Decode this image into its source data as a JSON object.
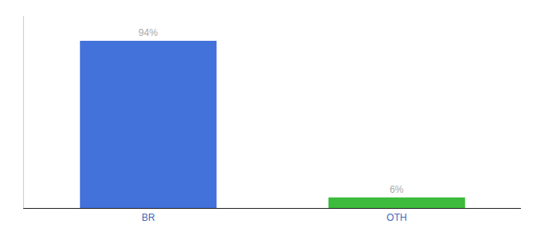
{
  "chart_data": {
    "type": "bar",
    "categories": [
      "BR",
      "OTH"
    ],
    "values": [
      94,
      6
    ],
    "value_labels": [
      "94%",
      "6%"
    ],
    "data_labels": true,
    "colors": [
      "#4472db",
      "#3dbb3d"
    ],
    "ylim": [
      0,
      108
    ],
    "yticks": [],
    "tick_labels": "x",
    "grid": false
  }
}
